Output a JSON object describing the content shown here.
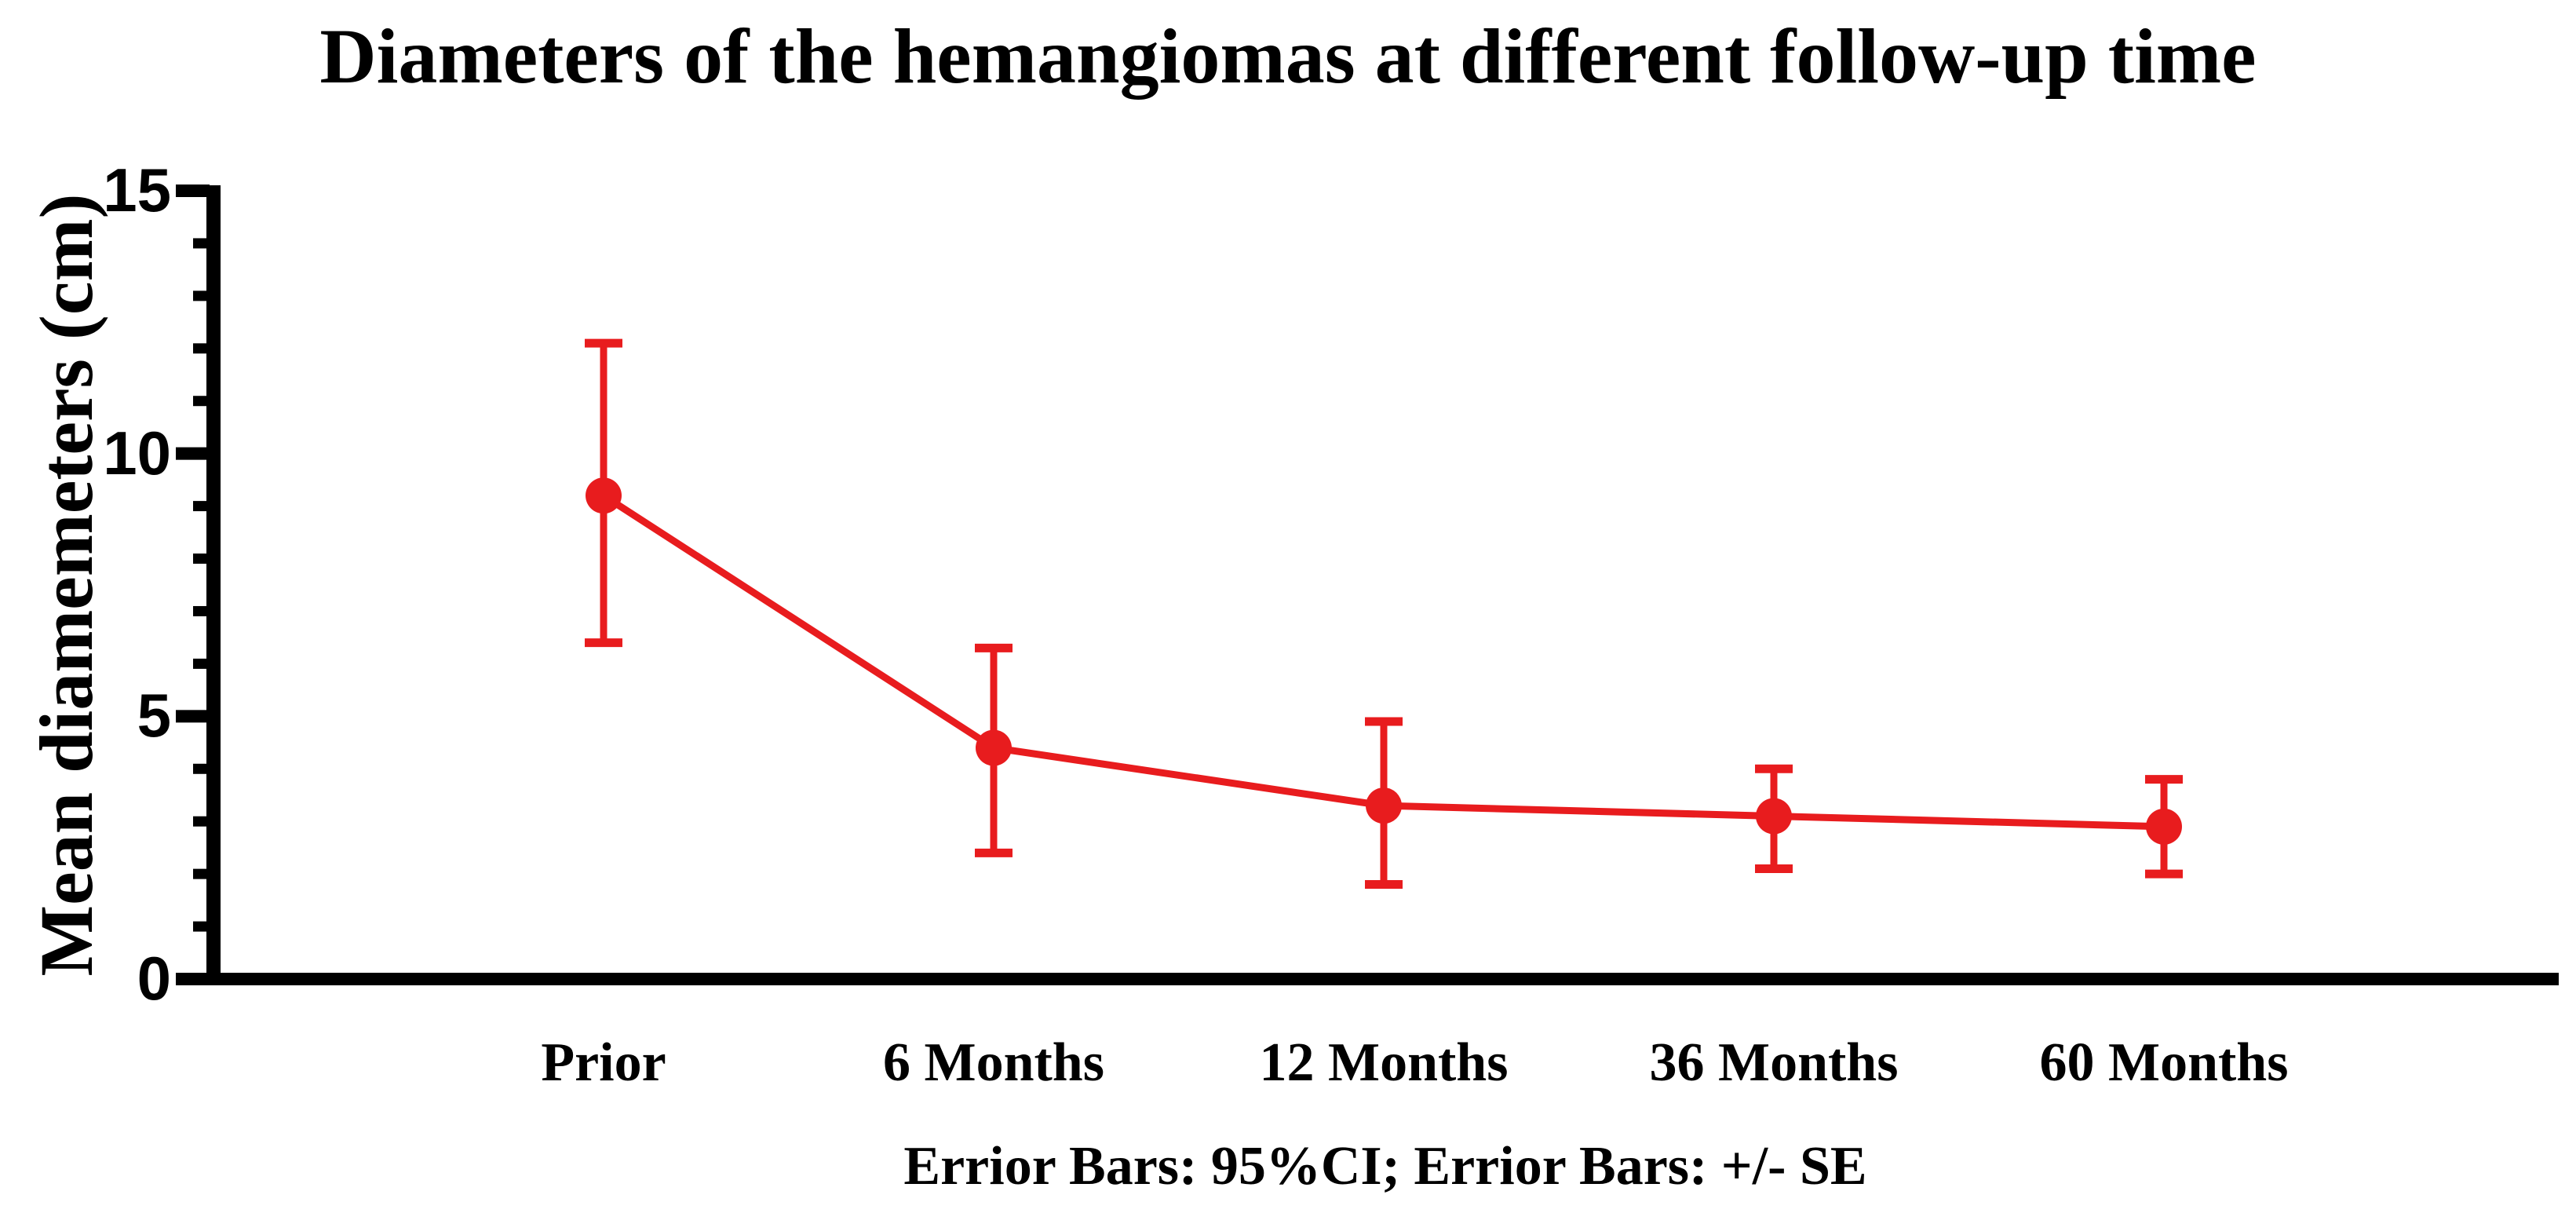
{
  "chart_data": {
    "type": "line",
    "title": "Diameters of the hemangiomas at different follow-up time",
    "ylabel": "Mean diamemeters (cm)",
    "xlabel": "",
    "caption": "Errior Bars: 95%CI; Errior Bars: +/- SE",
    "categories": [
      "Prior",
      "6 Months",
      "12 Months",
      "36 Months",
      "60 Months"
    ],
    "series": [
      {
        "values": [
          9.2,
          4.4,
          3.3,
          3.1,
          2.9
        ],
        "ci_upper": [
          12.1,
          6.3,
          4.9,
          4.0,
          3.8
        ],
        "ci_lower": [
          6.4,
          2.4,
          1.8,
          2.1,
          2.0
        ]
      }
    ],
    "ylim": [
      0,
      15
    ],
    "yticks": [
      0,
      5,
      10,
      15
    ],
    "minor_tick_interval": 1,
    "grid": false,
    "legend_position": "none",
    "marker": "circle",
    "series_color": "#e81c1e",
    "axis_color": "#000000"
  }
}
